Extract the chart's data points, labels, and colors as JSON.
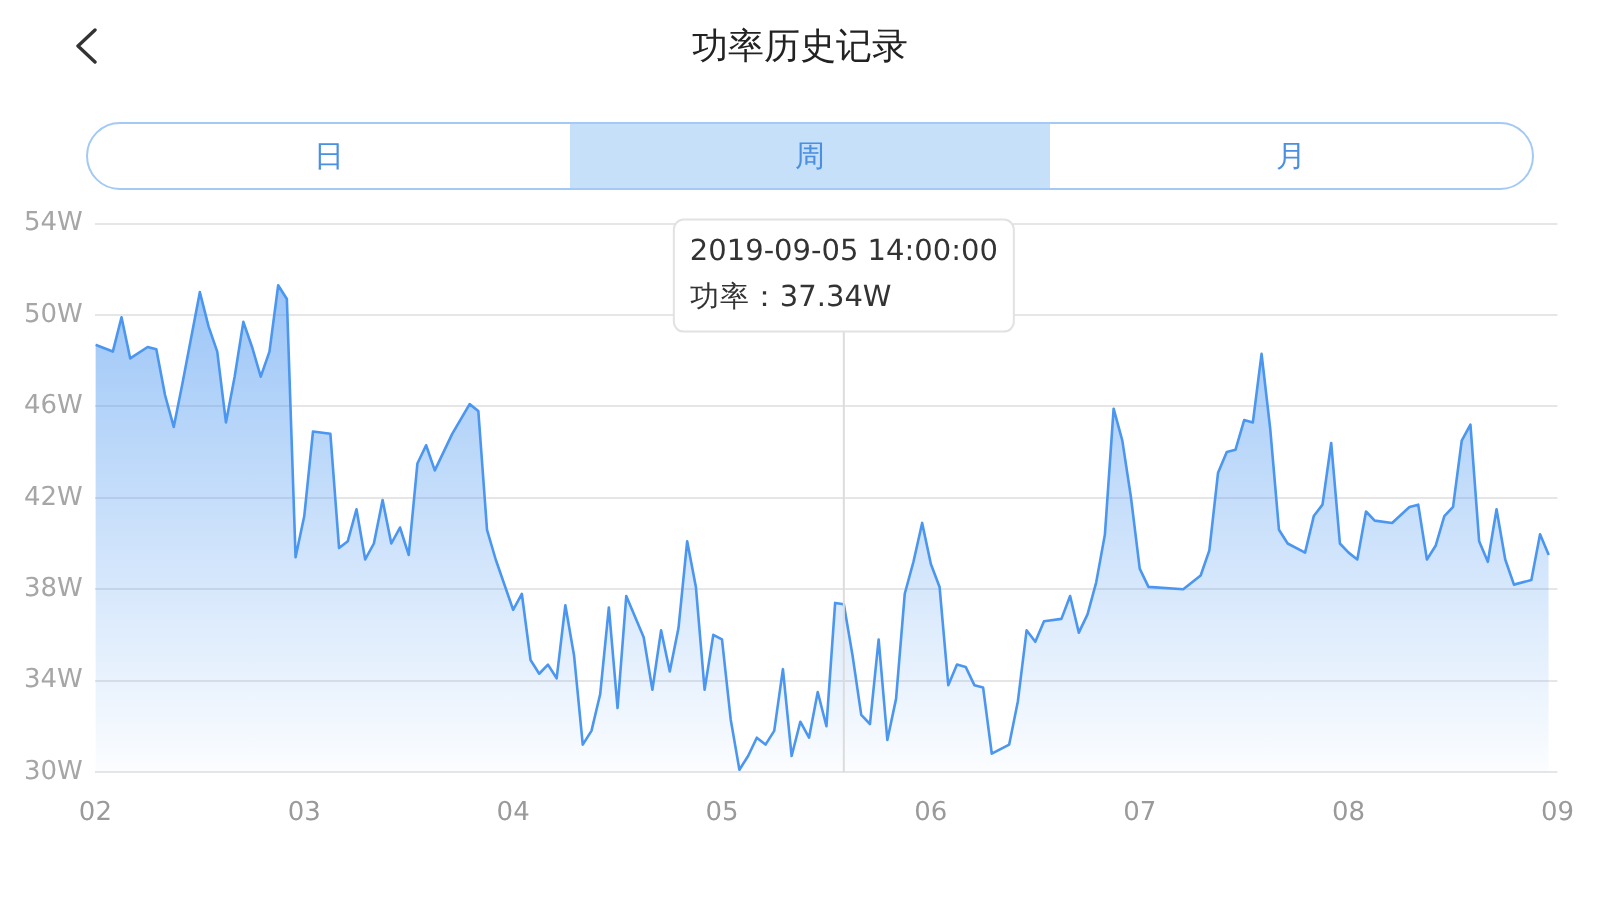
{
  "chart_data": {
    "type": "area",
    "title": "功率历史记录",
    "x": [
      "2019-09-02T00:00",
      "2019-09-02T02:00",
      "2019-09-02T03:00",
      "2019-09-02T04:00",
      "2019-09-02T06:00",
      "2019-09-02T07:00",
      "2019-09-02T08:00",
      "2019-09-02T09:00",
      "2019-09-02T10:00",
      "2019-09-02T12:00",
      "2019-09-02T13:00",
      "2019-09-02T14:00",
      "2019-09-02T15:00",
      "2019-09-02T16:00",
      "2019-09-02T17:00",
      "2019-09-02T18:00",
      "2019-09-02T19:00",
      "2019-09-02T20:00",
      "2019-09-02T21:00",
      "2019-09-02T22:00",
      "2019-09-02T23:00",
      "2019-09-03T00:00",
      "2019-09-03T01:00",
      "2019-09-03T03:00",
      "2019-09-03T04:00",
      "2019-09-03T05:00",
      "2019-09-03T06:00",
      "2019-09-03T07:00",
      "2019-09-03T08:00",
      "2019-09-03T09:00",
      "2019-09-03T10:00",
      "2019-09-03T11:00",
      "2019-09-03T12:00",
      "2019-09-03T13:00",
      "2019-09-03T14:00",
      "2019-09-03T15:00",
      "2019-09-03T17:00",
      "2019-09-03T19:00",
      "2019-09-03T20:00",
      "2019-09-03T21:00",
      "2019-09-03T22:00",
      "2019-09-04T00:00",
      "2019-09-04T01:00",
      "2019-09-04T02:00",
      "2019-09-04T03:00",
      "2019-09-04T04:00",
      "2019-09-04T05:00",
      "2019-09-04T06:00",
      "2019-09-04T07:00",
      "2019-09-04T08:00",
      "2019-09-04T09:00",
      "2019-09-04T10:00",
      "2019-09-04T11:00",
      "2019-09-04T12:00",
      "2019-09-04T13:00",
      "2019-09-04T15:00",
      "2019-09-04T16:00",
      "2019-09-04T17:00",
      "2019-09-04T18:00",
      "2019-09-04T19:00",
      "2019-09-04T20:00",
      "2019-09-04T21:00",
      "2019-09-04T22:00",
      "2019-09-04T23:00",
      "2019-09-05T00:00",
      "2019-09-05T01:00",
      "2019-09-05T02:00",
      "2019-09-05T03:00",
      "2019-09-05T04:00",
      "2019-09-05T05:00",
      "2019-09-05T06:00",
      "2019-09-05T07:00",
      "2019-09-05T08:00",
      "2019-09-05T09:00",
      "2019-09-05T10:00",
      "2019-09-05T11:00",
      "2019-09-05T12:00",
      "2019-09-05T13:00",
      "2019-09-05T14:00",
      "2019-09-05T15:00",
      "2019-09-05T16:00",
      "2019-09-05T17:00",
      "2019-09-05T18:00",
      "2019-09-05T19:00",
      "2019-09-05T20:00",
      "2019-09-05T21:00",
      "2019-09-05T22:00",
      "2019-09-05T23:00",
      "2019-09-06T00:00",
      "2019-09-06T01:00",
      "2019-09-06T02:00",
      "2019-09-06T03:00",
      "2019-09-06T04:00",
      "2019-09-06T05:00",
      "2019-09-06T06:00",
      "2019-09-06T07:00",
      "2019-09-06T09:00",
      "2019-09-06T10:00",
      "2019-09-06T11:00",
      "2019-09-06T12:00",
      "2019-09-06T13:00",
      "2019-09-06T15:00",
      "2019-09-06T16:00",
      "2019-09-06T17:00",
      "2019-09-06T18:00",
      "2019-09-06T19:00",
      "2019-09-06T20:00",
      "2019-09-06T21:00",
      "2019-09-06T22:00",
      "2019-09-06T23:00",
      "2019-09-07T00:00",
      "2019-09-07T01:00",
      "2019-09-07T05:00",
      "2019-09-07T07:00",
      "2019-09-07T08:00",
      "2019-09-07T09:00",
      "2019-09-07T10:00",
      "2019-09-07T11:00",
      "2019-09-07T12:00",
      "2019-09-07T13:00",
      "2019-09-07T14:00",
      "2019-09-07T15:00",
      "2019-09-07T16:00",
      "2019-09-07T17:00",
      "2019-09-07T19:00",
      "2019-09-07T20:00",
      "2019-09-07T21:00",
      "2019-09-07T22:00",
      "2019-09-07T23:00",
      "2019-09-08T00:00",
      "2019-09-08T01:00",
      "2019-09-08T02:00",
      "2019-09-08T03:00",
      "2019-09-08T05:00",
      "2019-09-08T07:00",
      "2019-09-08T08:00",
      "2019-09-08T09:00",
      "2019-09-08T10:00",
      "2019-09-08T11:00",
      "2019-09-08T12:00",
      "2019-09-08T13:00",
      "2019-09-08T14:00",
      "2019-09-08T15:00",
      "2019-09-08T16:00",
      "2019-09-08T17:00",
      "2019-09-08T18:00",
      "2019-09-08T19:00",
      "2019-09-08T21:00",
      "2019-09-08T22:00",
      "2019-09-08T23:00"
    ],
    "values": [
      48.7,
      48.4,
      49.9,
      48.1,
      48.6,
      48.5,
      46.5,
      45.1,
      47.0,
      51.0,
      49.5,
      48.4,
      45.3,
      47.3,
      49.7,
      48.6,
      47.3,
      48.4,
      51.3,
      50.7,
      39.4,
      41.2,
      44.9,
      44.8,
      39.8,
      40.1,
      41.5,
      39.3,
      40.0,
      41.9,
      40.0,
      40.7,
      39.5,
      43.5,
      44.3,
      43.2,
      44.8,
      46.1,
      45.8,
      40.6,
      39.3,
      37.1,
      37.8,
      34.9,
      34.3,
      34.7,
      34.1,
      37.3,
      35.1,
      31.2,
      31.8,
      33.4,
      37.2,
      32.8,
      37.7,
      35.9,
      33.6,
      36.2,
      34.4,
      36.3,
      40.1,
      38.1,
      33.6,
      36.0,
      35.8,
      32.3,
      30.1,
      30.7,
      31.5,
      31.2,
      31.8,
      34.5,
      30.7,
      32.2,
      31.5,
      33.5,
      32.0,
      37.4,
      37.34,
      35.1,
      32.5,
      32.1,
      35.8,
      31.4,
      33.2,
      37.8,
      39.2,
      40.9,
      39.1,
      38.1,
      33.8,
      34.7,
      34.6,
      33.8,
      33.7,
      30.8,
      31.2,
      33.1,
      36.2,
      35.7,
      36.6,
      36.7,
      37.7,
      36.1,
      36.9,
      38.3,
      40.4,
      45.9,
      44.5,
      42.0,
      38.9,
      38.1,
      38.0,
      38.6,
      39.7,
      43.1,
      44.0,
      44.1,
      45.4,
      45.3,
      48.3,
      45.0,
      40.6,
      40.0,
      39.6,
      41.2,
      41.7,
      44.4,
      40.0,
      39.6,
      39.3,
      41.4,
      41.0,
      40.9,
      41.6,
      41.7,
      39.3,
      39.9,
      41.2,
      41.6,
      44.5,
      45.2,
      40.1,
      39.2,
      41.5,
      39.3,
      38.2,
      38.4,
      40.4,
      39.5
    ],
    "color": "#4a96f0",
    "xlim": [
      "2019-09-02",
      "2019-09-09"
    ],
    "xticks": [
      {
        "value": "2019-09-02",
        "label": "02"
      },
      {
        "value": "2019-09-03",
        "label": "03"
      },
      {
        "value": "2019-09-04",
        "label": "04"
      },
      {
        "value": "2019-09-05",
        "label": "05"
      },
      {
        "value": "2019-09-06",
        "label": "06"
      },
      {
        "value": "2019-09-07",
        "label": "07"
      },
      {
        "value": "2019-09-08",
        "label": "08"
      },
      {
        "value": "2019-09-09",
        "label": "09"
      }
    ],
    "ylim": [
      30,
      54
    ],
    "yticks": [
      {
        "value": 30,
        "label": "30W"
      },
      {
        "value": 34,
        "label": "34W"
      },
      {
        "value": 38,
        "label": "38W"
      },
      {
        "value": 42,
        "label": "42W"
      },
      {
        "value": 46,
        "label": "46W"
      },
      {
        "value": 50,
        "label": "50W"
      },
      {
        "value": 54,
        "label": "54W"
      }
    ],
    "grid": "y",
    "ref_lines": [
      {
        "axis": "x",
        "value": "2019-09-05T14:00",
        "color": "#dcdcdc"
      }
    ],
    "annotations": [
      "日",
      "周",
      "月",
      {
        "text": "2019-09-05 14:00:00",
        "x": "2019-09-05T14:00"
      },
      {
        "text": "功率：37.34W",
        "x": "2019-09-05T14:00"
      }
    ]
  }
}
